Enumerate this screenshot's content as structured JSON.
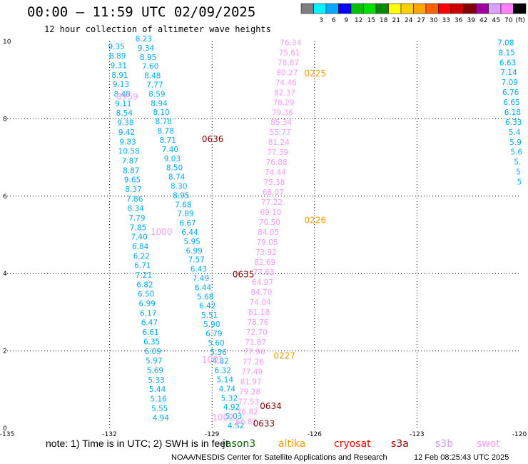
{
  "header": {
    "title": "00:00 — 11:59 UTC 02/09/2025",
    "subtitle": "12 hour collection of altimeter wave heights"
  },
  "legend": {
    "unit": "(ft)",
    "bins": [
      {
        "label": "",
        "color": "#7f7f7f"
      },
      {
        "label": "3",
        "color": "#00f5ff"
      },
      {
        "label": "6",
        "color": "#00aaff"
      },
      {
        "label": "9",
        "color": "#0000ff"
      },
      {
        "label": "12",
        "color": "#00c000"
      },
      {
        "label": "15",
        "color": "#00e000"
      },
      {
        "label": "18",
        "color": "#008800"
      },
      {
        "label": "21",
        "color": "#ffff00"
      },
      {
        "label": "24",
        "color": "#ffd000"
      },
      {
        "label": "27",
        "color": "#ffa500"
      },
      {
        "label": "30",
        "color": "#ff6000"
      },
      {
        "label": "33",
        "color": "#ff0000"
      },
      {
        "label": "36",
        "color": "#cc0000"
      },
      {
        "label": "39",
        "color": "#800000"
      },
      {
        "label": "42",
        "color": "#a000a0"
      },
      {
        "label": "45",
        "color": "#d8a0ff"
      },
      {
        "label": "70",
        "color": "#ff80ff"
      },
      {
        "label": "",
        "color": "#000000"
      }
    ]
  },
  "note": "note: 1) Time is in UTC; 2) SWH is in feet",
  "satellites": [
    {
      "name": "jason3",
      "color": "#006600"
    },
    {
      "name": "altika",
      "color": "#ff9900"
    },
    {
      "name": "cryosat",
      "color": "#ff0000"
    },
    {
      "name": "s3a",
      "color": "#990000"
    },
    {
      "name": "s3b",
      "color": "#cc99ff"
    },
    {
      "name": "swot",
      "color": "#ff99ff"
    }
  ],
  "footer": {
    "agency": "NOAA/NESDIS Center for Satellite Applications and Research",
    "timestamp": "12 Feb 08:25:43 UTC 2025"
  },
  "map": {
    "x_ticks": [
      "-135",
      "-132",
      "-129",
      "-126",
      "-123",
      "-120"
    ],
    "y_ticks": [
      "0",
      "2",
      "4",
      "6",
      "8",
      "10"
    ],
    "lon_range": [
      -135,
      -120
    ],
    "lat_range": [
      0,
      10
    ],
    "time_labels": [
      {
        "text": "0225",
        "color": "#ff9900",
        "lon": -126.3,
        "lat": 9.1
      },
      {
        "text": "0226",
        "color": "#ff9900",
        "lon": -126.3,
        "lat": 5.3
      },
      {
        "text": "0227",
        "color": "#ff9900",
        "lon": -127.2,
        "lat": 1.8
      },
      {
        "text": "0636",
        "color": "#800000",
        "lon": -129.3,
        "lat": 7.4
      },
      {
        "text": "0635",
        "color": "#800000",
        "lon": -128.4,
        "lat": 3.9
      },
      {
        "text": "0634",
        "color": "#800000",
        "lon": -127.6,
        "lat": 0.5
      },
      {
        "text": "0633",
        "color": "#800000",
        "lon": -127.8,
        "lat": 0.05
      },
      {
        "text": "0959",
        "color": "#ff99ff",
        "lon": -131.8,
        "lat": 8.5
      },
      {
        "text": "1000",
        "color": "#ff99ff",
        "lon": -130.8,
        "lat": 5.0
      },
      {
        "text": "1001",
        "color": "#ff99ff",
        "lon": -129.3,
        "lat": 1.7
      },
      {
        "text": "1002",
        "color": "#ff99ff",
        "lon": -129.0,
        "lat": 0.2
      }
    ],
    "tracks": [
      {
        "color": "#00aaff",
        "values": [
          "8.23",
          "9.34",
          "8.95",
          "7.60",
          "8.48",
          "7.77",
          "8.59",
          "8.94",
          "8.10",
          "8.78",
          "8.78",
          "8.71",
          "7.40",
          "9.03",
          "8.50",
          "8.74",
          "8.30",
          "8.95",
          "7.68",
          "7.89",
          "6.67",
          "6.44",
          "5.95",
          "6.99",
          "7.57",
          "6.43",
          "7.49",
          "6.44",
          "5.68",
          "6.42",
          "5.51",
          "5.90",
          "6.79",
          "5.60",
          "5.36",
          "4.82",
          "6.32",
          "5.14",
          "4.74",
          "5.32",
          "4.92",
          "5.03",
          "4.52"
        ],
        "start": [
          -131.0,
          10.0
        ],
        "end": [
          -128.3,
          0.0
        ]
      },
      {
        "color": "#00aaff",
        "values": [
          "9.35",
          "8.89",
          "9.31",
          "8.91",
          "9.13",
          "8.48",
          "9.11",
          "8.54",
          "9.38",
          "9.42",
          "9.83",
          "10.58",
          "7.87",
          "8.87",
          "9.65",
          "8.37",
          "7.86",
          "8.34",
          "7.79",
          "7.85",
          "7.40",
          "6.84",
          "6.22",
          "6.71",
          "7.21",
          "6.82",
          "6.50",
          "6.99",
          "6.17",
          "6.47",
          "6.61",
          "6.35",
          "6.09",
          "5.97",
          "5.69",
          "5.33",
          "5.44",
          "5.16",
          "5.55",
          "4.94"
        ],
        "start": [
          -131.8,
          9.8
        ],
        "end": [
          -130.5,
          0.2
        ]
      },
      {
        "color": "#ff99ff",
        "values": [
          "76.34",
          "75.61",
          "78.87",
          "80.27",
          "74.46",
          "82.37",
          "78.29",
          "79.36",
          "85.34",
          "55.77",
          "81.24",
          "77.39",
          "76.88",
          "74.44",
          "75.38",
          "68.07",
          "77.22",
          "69.10",
          "70.50",
          "84.05",
          "79.05",
          "73.92",
          "82.69",
          "77.63",
          "64.97",
          "84.70",
          "74.04",
          "81.18",
          "78.76",
          "72.70",
          "71.87",
          "77.96",
          "77.26",
          "77.49",
          "81.97",
          "79.28",
          "77.53",
          "76.82",
          "66.82"
        ],
        "start": [
          -126.7,
          9.9
        ],
        "end": [
          -128.0,
          0.1
        ]
      },
      {
        "color": "#00aaff",
        "values": [
          "7.08",
          "8.15",
          "6.63",
          "7.14",
          "7.09",
          "6.76",
          "6.65",
          "6.18",
          "6.33",
          "5.4",
          "5.9",
          "5.6",
          "5.",
          "5",
          "5"
        ],
        "start": [
          -120.4,
          9.9
        ],
        "end": [
          -120.0,
          6.3
        ]
      }
    ]
  }
}
